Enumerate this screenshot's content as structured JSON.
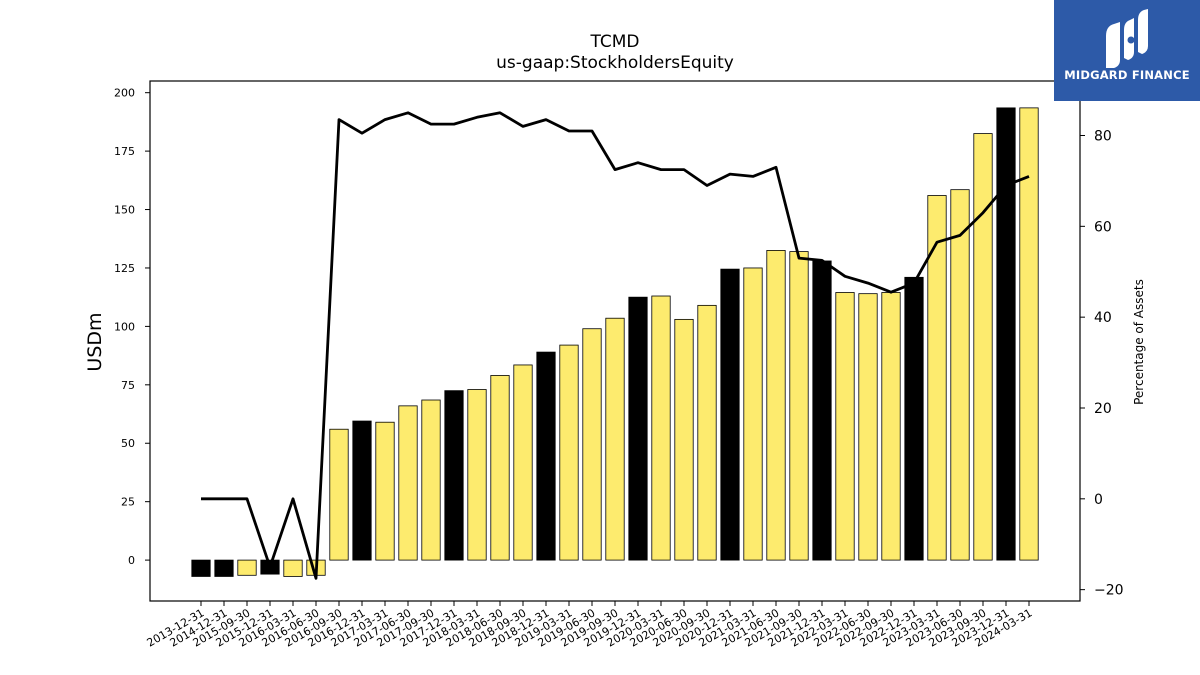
{
  "chart_data": {
    "type": "bar",
    "title": "TCMD",
    "subtitle": "us-gaap:StockholdersEquity",
    "ylabel": "USDm",
    "y2label": "Percentage of Assets",
    "ylim": [
      -17.5,
      205
    ],
    "y2lim": [
      -22.5,
      92
    ],
    "yticks": [
      0,
      25,
      50,
      75,
      100,
      125,
      150,
      175,
      200
    ],
    "y2ticks": [
      -20,
      0,
      20,
      40,
      60,
      80
    ],
    "grid": false,
    "categories": [
      "2013-12-31",
      "2014-12-31",
      "2015-09-30",
      "2015-12-31",
      "2016-03-31",
      "2016-06-30",
      "2016-09-30",
      "2016-12-31",
      "2017-03-31",
      "2017-06-30",
      "2017-09-30",
      "2017-12-31",
      "2018-03-31",
      "2018-06-30",
      "2018-09-30",
      "2018-12-31",
      "2019-03-31",
      "2019-06-30",
      "2019-09-30",
      "2019-12-31",
      "2020-03-31",
      "2020-06-30",
      "2020-09-30",
      "2020-12-31",
      "2021-03-31",
      "2021-06-30",
      "2021-09-30",
      "2021-12-31",
      "2022-03-31",
      "2022-06-30",
      "2022-09-30",
      "2022-12-31",
      "2023-03-31",
      "2023-06-30",
      "2023-09-30",
      "2023-12-31",
      "2024-03-31"
    ],
    "series": [
      {
        "type": "bar",
        "axis": "left",
        "values": [
          -7,
          -7,
          -6.5,
          -6,
          -7,
          -6.5,
          56,
          59.5,
          59,
          66,
          68.5,
          72.5,
          73,
          79,
          83.5,
          89,
          92,
          99,
          103.5,
          112.5,
          113,
          103,
          109,
          124.5,
          125,
          132.5,
          132,
          128,
          114.5,
          114,
          114.5,
          121,
          156,
          158.5,
          182.5,
          193.5,
          193.5
        ],
        "colors": [
          "#000000",
          "#000000",
          "#fdeb6e",
          "#000000",
          "#fdeb6e",
          "#fdeb6e",
          "#fdeb6e",
          "#000000",
          "#fdeb6e",
          "#fdeb6e",
          "#fdeb6e",
          "#000000",
          "#fdeb6e",
          "#fdeb6e",
          "#fdeb6e",
          "#000000",
          "#fdeb6e",
          "#fdeb6e",
          "#fdeb6e",
          "#000000",
          "#fdeb6e",
          "#fdeb6e",
          "#fdeb6e",
          "#000000",
          "#fdeb6e",
          "#fdeb6e",
          "#fdeb6e",
          "#000000",
          "#fdeb6e",
          "#fdeb6e",
          "#fdeb6e",
          "#000000",
          "#fdeb6e",
          "#fdeb6e",
          "#fdeb6e",
          "#000000",
          "#fdeb6e"
        ]
      },
      {
        "type": "line",
        "axis": "right",
        "color": "#000000",
        "values": [
          0,
          0,
          0,
          -15,
          0,
          -17.5,
          83.5,
          80.5,
          83.5,
          85,
          82.5,
          82.5,
          84,
          85,
          82,
          83.5,
          81,
          81,
          72.5,
          74,
          72.5,
          72.5,
          69,
          71.5,
          71,
          73,
          53,
          52.5,
          49,
          47.5,
          45.5,
          47.5,
          56.5,
          58,
          63,
          69,
          71
        ]
      }
    ]
  },
  "logo": {
    "text": "MIDGARD FINANCE",
    "icon": "midgard-m-logo-icon",
    "background": "#2d5aa8"
  }
}
